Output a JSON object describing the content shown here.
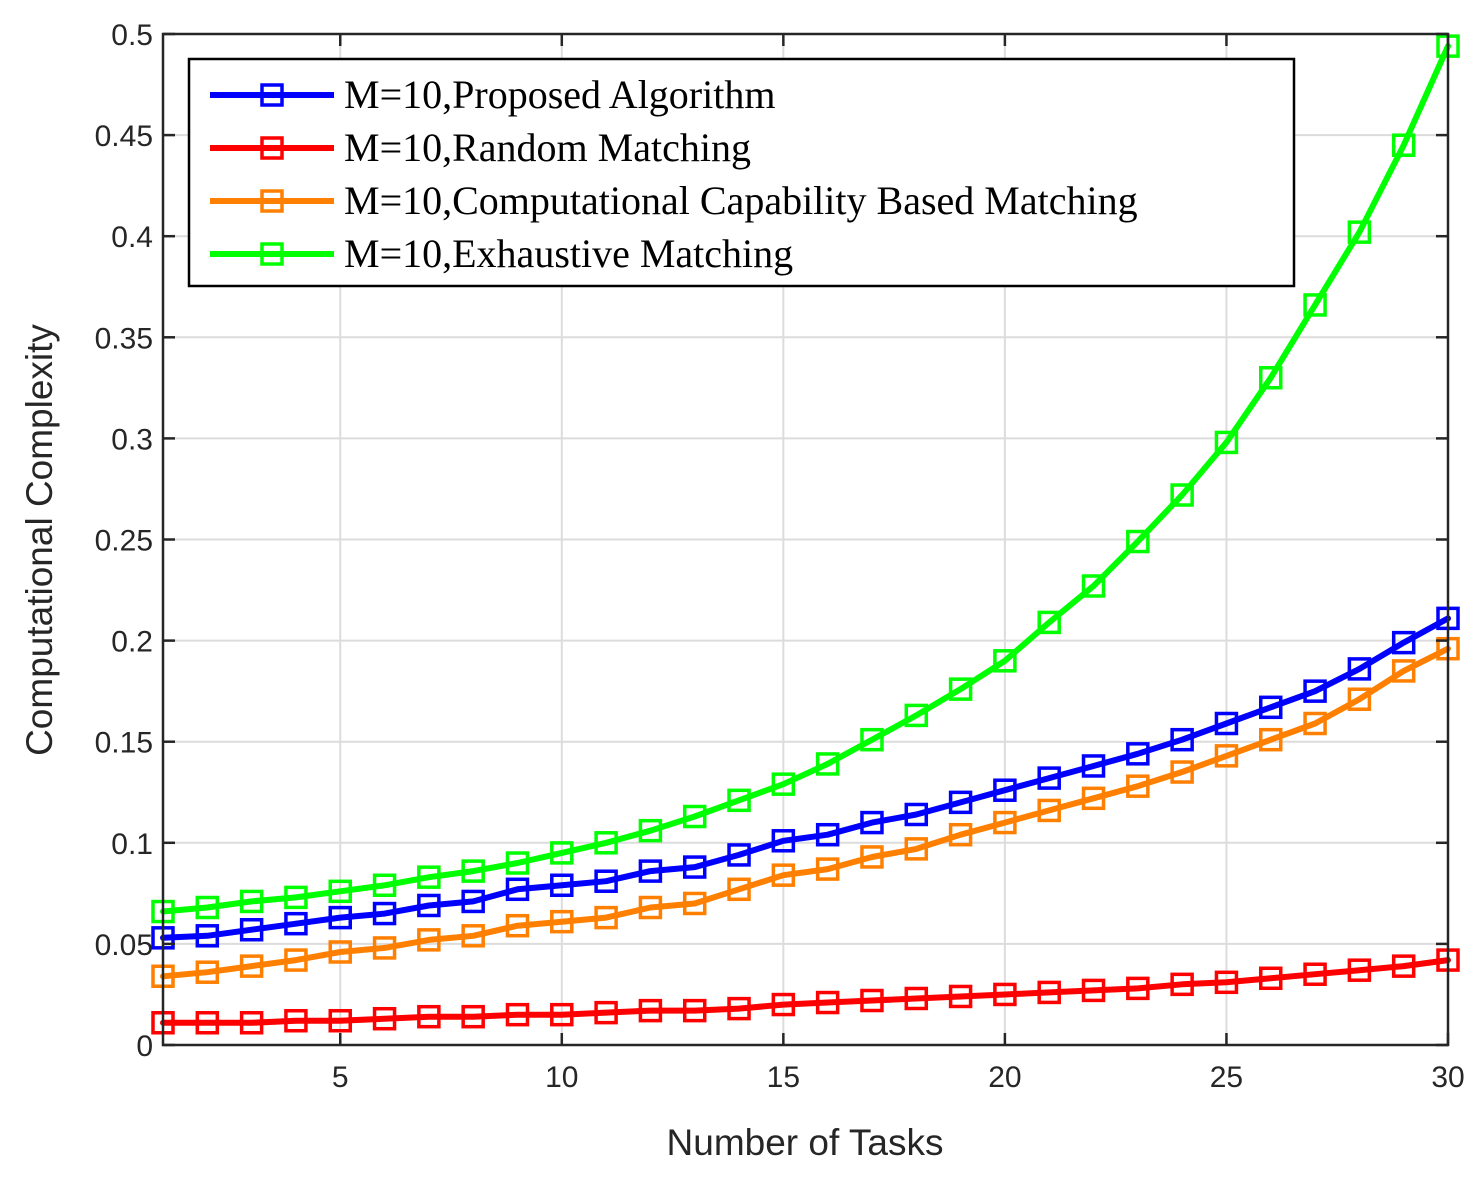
{
  "chart_data": {
    "type": "line",
    "title": "",
    "xlabel": "Number of Tasks",
    "ylabel": "Computational Complexity",
    "xlim": [
      1,
      30
    ],
    "ylim": [
      0,
      0.5
    ],
    "xticks": [
      5,
      10,
      15,
      20,
      25,
      30
    ],
    "yticks": [
      0,
      0.05,
      0.1,
      0.15,
      0.2,
      0.25,
      0.3,
      0.35,
      0.4,
      0.45,
      0.5
    ],
    "xtick_labels": [
      "5",
      "10",
      "15",
      "20",
      "25",
      "30"
    ],
    "ytick_labels": [
      "0",
      "0.05",
      "0.1",
      "0.15",
      "0.2",
      "0.25",
      "0.3",
      "0.35",
      "0.4",
      "0.45",
      "0.5"
    ],
    "grid": true,
    "legend_position": "top-left",
    "x": [
      1,
      2,
      3,
      4,
      5,
      6,
      7,
      8,
      9,
      10,
      11,
      12,
      13,
      14,
      15,
      16,
      17,
      18,
      19,
      20,
      21,
      22,
      23,
      24,
      25,
      26,
      27,
      28,
      29,
      30
    ],
    "series": [
      {
        "name": "M=10,Proposed Algorithm",
        "color": "#0000ff",
        "marker": "square",
        "values": [
          0.053,
          0.054,
          0.057,
          0.06,
          0.063,
          0.065,
          0.069,
          0.071,
          0.077,
          0.079,
          0.081,
          0.086,
          0.088,
          0.094,
          0.101,
          0.104,
          0.11,
          0.114,
          0.12,
          0.126,
          0.132,
          0.138,
          0.144,
          0.151,
          0.159,
          0.167,
          0.175,
          0.186,
          0.199,
          0.211
        ]
      },
      {
        "name": "M=10,Random Matching",
        "color": "#ff0000",
        "marker": "square",
        "values": [
          0.011,
          0.011,
          0.011,
          0.012,
          0.012,
          0.013,
          0.014,
          0.014,
          0.015,
          0.015,
          0.016,
          0.017,
          0.017,
          0.018,
          0.02,
          0.021,
          0.022,
          0.023,
          0.024,
          0.025,
          0.026,
          0.027,
          0.028,
          0.03,
          0.031,
          0.033,
          0.035,
          0.037,
          0.039,
          0.042
        ]
      },
      {
        "name": "M=10,Computational Capability Based Matching",
        "color": "#ff8000",
        "marker": "square",
        "values": [
          0.034,
          0.036,
          0.039,
          0.042,
          0.046,
          0.048,
          0.052,
          0.054,
          0.059,
          0.061,
          0.063,
          0.068,
          0.07,
          0.077,
          0.084,
          0.087,
          0.093,
          0.097,
          0.104,
          0.11,
          0.116,
          0.122,
          0.128,
          0.135,
          0.143,
          0.151,
          0.159,
          0.171,
          0.185,
          0.196
        ]
      },
      {
        "name": "M=10,Exhaustive Matching",
        "color": "#00ff00",
        "marker": "square",
        "values": [
          0.066,
          0.068,
          0.071,
          0.073,
          0.076,
          0.079,
          0.083,
          0.086,
          0.09,
          0.095,
          0.1,
          0.106,
          0.113,
          0.121,
          0.129,
          0.139,
          0.151,
          0.163,
          0.176,
          0.19,
          0.209,
          0.227,
          0.249,
          0.272,
          0.298,
          0.33,
          0.366,
          0.402,
          0.445,
          0.494
        ]
      }
    ]
  }
}
